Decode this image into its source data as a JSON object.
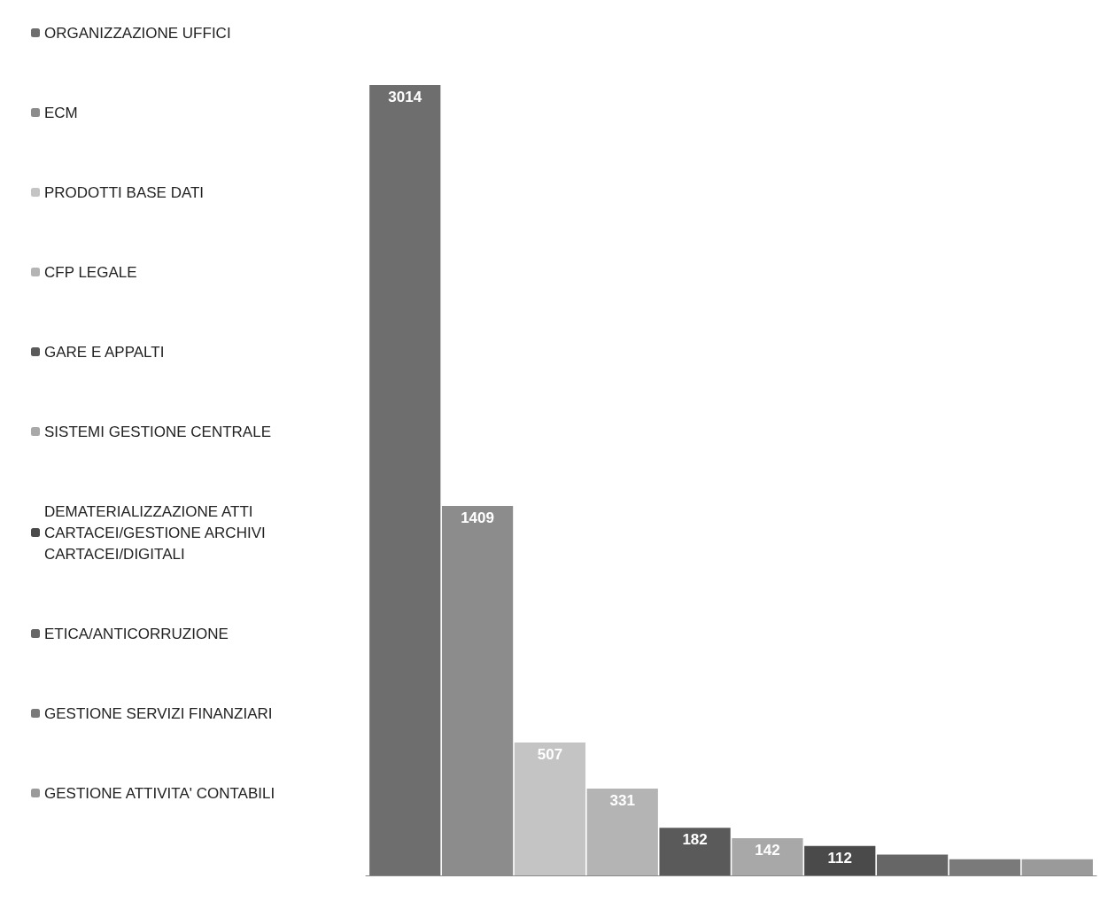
{
  "chart_data": {
    "type": "bar",
    "categories": [
      null
    ],
    "series": [
      {
        "name": "ORGANIZZAZIONE UFFICI",
        "color": "#6e6e6e",
        "values": [
          3014
        ],
        "value_labels": [
          "3014"
        ]
      },
      {
        "name": "ECM",
        "color": "#8c8c8c",
        "values": [
          1409
        ],
        "value_labels": [
          "1409"
        ]
      },
      {
        "name": "PRODOTTI BASE DATI",
        "color": "#c4c4c4",
        "values": [
          507
        ],
        "value_labels": [
          "507"
        ]
      },
      {
        "name": "CFP LEGALE",
        "color": "#b4b4b4",
        "values": [
          331
        ],
        "value_labels": [
          "331"
        ]
      },
      {
        "name": "GARE E APPALTI",
        "color": "#5a5a5a",
        "values": [
          182
        ],
        "value_labels": [
          "182"
        ]
      },
      {
        "name": "SISTEMI GESTIONE CENTRALE",
        "color": "#a8a8a8",
        "values": [
          142
        ],
        "value_labels": [
          "142"
        ]
      },
      {
        "name": "DEMATERIALIZZAZIONE ATTI CARTACEI/GESTIONE ARCHIVI CARTACEI/DIGITALI",
        "color": "#4a4a4a",
        "values": [
          112
        ],
        "value_labels": [
          "112"
        ]
      },
      {
        "name": "ETICA/ANTICORRUZIONE",
        "color": "#666666",
        "values": [
          79
        ],
        "value_labels": [
          null
        ]
      },
      {
        "name": "GESTIONE SERVIZI FINANZIARI",
        "color": "#7a7a7a",
        "values": [
          62
        ],
        "value_labels": [
          null
        ]
      },
      {
        "name": "GESTIONE ATTIVITA' CONTABILI",
        "color": "#9a9a9a",
        "values": [
          62
        ],
        "value_labels": [
          null
        ]
      }
    ],
    "legend": "left"
  }
}
